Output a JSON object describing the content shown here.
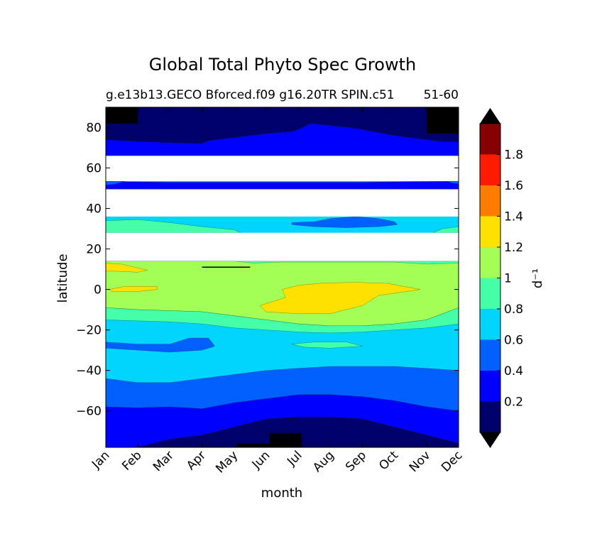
{
  "chart_data": {
    "type": "contour",
    "title": "Global Total Phyto Spec Growth",
    "subtitle_left": "g.e13b13.GECO Bforced.f09 g16.20TR SPIN.c51",
    "subtitle_right": "51-60",
    "xlabel": "month",
    "ylabel": "latitude",
    "x_ticks": [
      "Jan",
      "Feb",
      "Mar",
      "Apr",
      "May",
      "Jun",
      "Jul",
      "Aug",
      "Sep",
      "Oct",
      "Nov",
      "Dec"
    ],
    "xlim": [
      1,
      12
    ],
    "ylim": [
      -78,
      90
    ],
    "y_ticks": [
      80,
      60,
      40,
      20,
      0,
      -20,
      -40,
      -60
    ],
    "y_tick_labels": [
      "80",
      "60",
      "40",
      "20",
      "0",
      "−20",
      "−40",
      "−60"
    ],
    "missing_data_bands": [
      [
        66,
        53.5
      ],
      [
        49.5,
        36
      ],
      [
        28,
        14
      ]
    ],
    "colorbar": {
      "label": "d⁻¹",
      "levels": [
        0,
        0.2,
        0.4,
        0.6,
        0.8,
        1.0,
        1.2,
        1.4,
        1.6,
        1.8,
        2.0
      ],
      "colors": [
        "#00006a",
        "#0000ff",
        "#005fff",
        "#00d4ff",
        "#44ffa8",
        "#a3ff55",
        "#ffe100",
        "#ff7c00",
        "#ff1a00",
        "#850000"
      ],
      "tick_values": [
        0.2,
        0.4,
        0.6,
        0.8,
        1,
        1.2,
        1.4,
        1.6,
        1.8
      ],
      "tick_labels": [
        "0.2",
        "0.4",
        "0.6",
        "0.8",
        "1",
        "1.2",
        "1.4",
        "1.6",
        "1.8"
      ],
      "under_color": "#000000",
      "over_color": "#000000"
    }
  }
}
